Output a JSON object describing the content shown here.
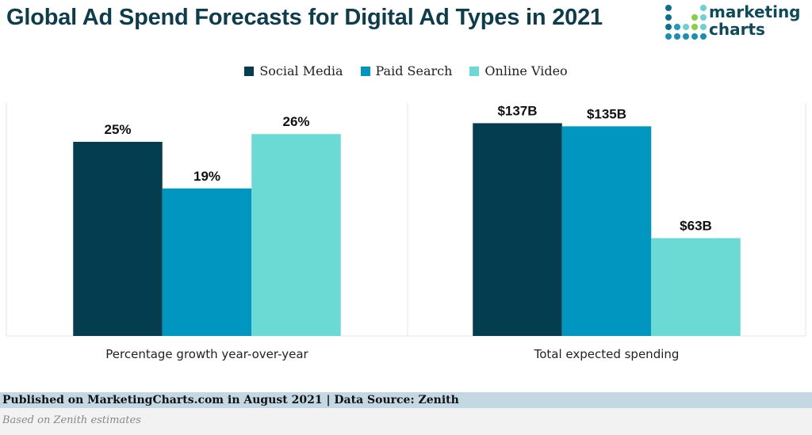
{
  "title": "Global Ad Spend Forecasts for Digital Ad Types in 2021",
  "logo": {
    "line1": "marketing",
    "line2": "charts"
  },
  "colors": {
    "Social Media": "#033d4f",
    "Paid Search": "#0096bf",
    "Online Video": "#6cdad4"
  },
  "legend": [
    "Social Media",
    "Paid Search",
    "Online Video"
  ],
  "chart_data": [
    {
      "type": "bar",
      "title": "",
      "xlabel": "Percentage growth year-over-year",
      "categories": [
        "Social Media",
        "Paid Search",
        "Online Video"
      ],
      "values": [
        25,
        19,
        26
      ],
      "labels": [
        "25%",
        "19%",
        "26%"
      ],
      "ylim": [
        0,
        30
      ],
      "grid": false
    },
    {
      "type": "bar",
      "title": "",
      "xlabel": "Total expected spending",
      "categories": [
        "Social Media",
        "Paid Search",
        "Online Video"
      ],
      "values": [
        137,
        135,
        63
      ],
      "labels": [
        "$137B",
        "$135B",
        "$63B"
      ],
      "ylim": [
        0,
        150
      ],
      "grid": false
    }
  ],
  "footer": {
    "published": "Published on MarketingCharts.com in August 2021 | Data Source: Zenith",
    "note": "Based on Zenith estimates"
  }
}
